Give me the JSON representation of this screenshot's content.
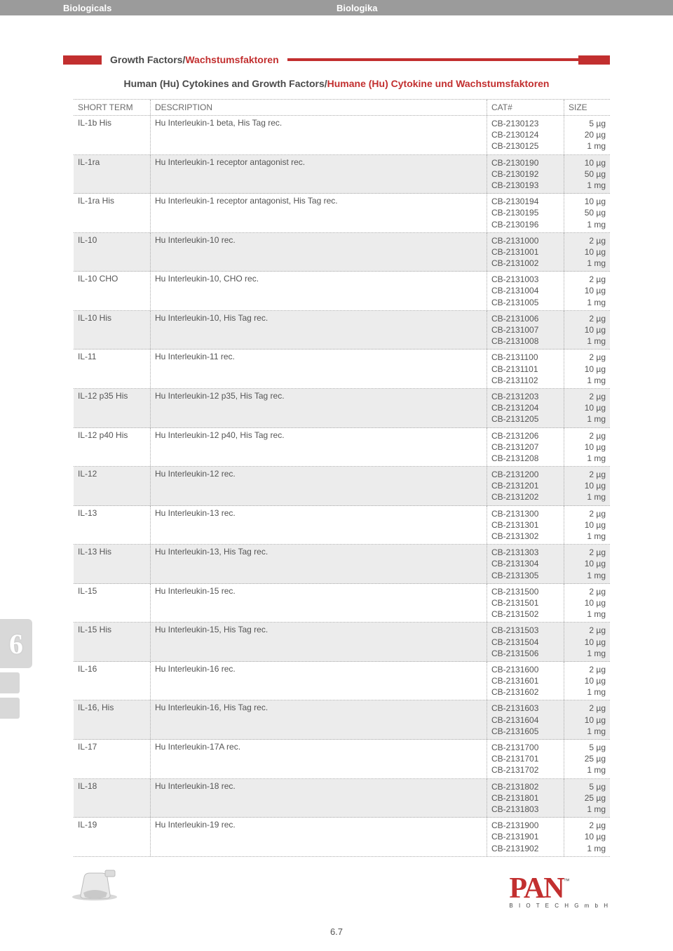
{
  "header": {
    "left": "Biologicals",
    "right": "Biologika"
  },
  "section": {
    "title_en": "Growth Factors",
    "title_de": "Wachstumsfaktoren",
    "sep": "/"
  },
  "subtitle": {
    "en": "Human (Hu) Cytokines and Growth Factors",
    "de": "Humane (Hu) Cytokine und Wachstumsfaktoren",
    "sep": "/"
  },
  "columns": {
    "short": "SHORT TERM",
    "desc": "DESCRIPTION",
    "cat": "CAT#",
    "size": "SIZE"
  },
  "side_tab": "6",
  "page_number": "6.7",
  "logo": {
    "brand": "PAN",
    "tm": "™",
    "sub": "B I O T E C H   G m b H"
  },
  "colors": {
    "header_bg": "#9b9b9b",
    "accent_red": "#c22f2f",
    "row_shade": "#ececec",
    "text_gray": "#555555",
    "border_dotted": "#aaaaaa"
  },
  "rows": [
    {
      "st": "IL-1b His",
      "desc": "Hu Interleukin-1 beta, His Tag rec.",
      "cats": [
        "CB-2130123",
        "CB-2130124",
        "CB-2130125"
      ],
      "sizes": [
        "5 µg",
        "20 µg",
        "1 mg"
      ],
      "shade": false
    },
    {
      "st": "IL-1ra",
      "desc": "Hu Interleukin-1 receptor antagonist rec.",
      "cats": [
        "CB-2130190",
        "CB-2130192",
        "CB-2130193"
      ],
      "sizes": [
        "10 µg",
        "50 µg",
        "1 mg"
      ],
      "shade": true
    },
    {
      "st": "IL-1ra His",
      "desc": "Hu Interleukin-1 receptor antagonist, His Tag rec.",
      "cats": [
        "CB-2130194",
        "CB-2130195",
        "CB-2130196"
      ],
      "sizes": [
        "10 µg",
        "50 µg",
        "1 mg"
      ],
      "shade": false
    },
    {
      "st": "IL-10",
      "desc": "Hu Interleukin-10 rec.",
      "cats": [
        "CB-2131000",
        "CB-2131001",
        "CB-2131002"
      ],
      "sizes": [
        "2 µg",
        "10 µg",
        "1 mg"
      ],
      "shade": true
    },
    {
      "st": "IL-10 CHO",
      "desc": "Hu Interleukin-10, CHO rec.",
      "cats": [
        "CB-2131003",
        "CB-2131004",
        "CB-2131005"
      ],
      "sizes": [
        "2 µg",
        "10 µg",
        "1 mg"
      ],
      "shade": false
    },
    {
      "st": "IL-10 His",
      "desc": "Hu Interleukin-10, His Tag rec.",
      "cats": [
        "CB-2131006",
        "CB-2131007",
        "CB-2131008"
      ],
      "sizes": [
        "2 µg",
        "10 µg",
        "1 mg"
      ],
      "shade": true
    },
    {
      "st": "IL-11",
      "desc": "Hu Interleukin-11 rec.",
      "cats": [
        "CB-2131100",
        "CB-2131101",
        "CB-2131102"
      ],
      "sizes": [
        "2 µg",
        "10 µg",
        "1 mg"
      ],
      "shade": false
    },
    {
      "st": "IL-12 p35 His",
      "desc": "Hu Interleukin-12 p35, His Tag rec.",
      "cats": [
        "CB-2131203",
        "CB-2131204",
        "CB-2131205"
      ],
      "sizes": [
        "2 µg",
        "10 µg",
        "1 mg"
      ],
      "shade": true
    },
    {
      "st": "IL-12 p40 His",
      "desc": "Hu Interleukin-12 p40, His Tag rec.",
      "cats": [
        "CB-2131206",
        "CB-2131207",
        "CB-2131208"
      ],
      "sizes": [
        "2 µg",
        "10 µg",
        "1 mg"
      ],
      "shade": false
    },
    {
      "st": "IL-12",
      "desc": "Hu Interleukin-12 rec.",
      "cats": [
        "CB-2131200",
        "CB-2131201",
        "CB-2131202"
      ],
      "sizes": [
        "2 µg",
        "10 µg",
        "1 mg"
      ],
      "shade": true
    },
    {
      "st": "IL-13",
      "desc": "Hu Interleukin-13 rec.",
      "cats": [
        "CB-2131300",
        "CB-2131301",
        "CB-2131302"
      ],
      "sizes": [
        "2 µg",
        "10 µg",
        "1 mg"
      ],
      "shade": false
    },
    {
      "st": "IL-13 His",
      "desc": "Hu Interleukin-13, His Tag rec.",
      "cats": [
        "CB-2131303",
        "CB-2131304",
        "CB-2131305"
      ],
      "sizes": [
        "2 µg",
        "10 µg",
        "1 mg"
      ],
      "shade": true
    },
    {
      "st": "IL-15",
      "desc": "Hu Interleukin-15 rec.",
      "cats": [
        "CB-2131500",
        "CB-2131501",
        "CB-2131502"
      ],
      "sizes": [
        "2 µg",
        "10 µg",
        "1 mg"
      ],
      "shade": false
    },
    {
      "st": "IL-15 His",
      "desc": "Hu Interleukin-15, His Tag rec.",
      "cats": [
        "CB-2131503",
        "CB-2131504",
        "CB-2131506"
      ],
      "sizes": [
        "2 µg",
        "10 µg",
        "1 mg"
      ],
      "shade": true
    },
    {
      "st": "IL-16",
      "desc": "Hu Interleukin-16 rec.",
      "cats": [
        "CB-2131600",
        "CB-2131601",
        "CB-2131602"
      ],
      "sizes": [
        "2 µg",
        "10 µg",
        "1 mg"
      ],
      "shade": false
    },
    {
      "st": "IL-16, His",
      "desc": "Hu Interleukin-16, His Tag rec.",
      "cats": [
        "CB-2131603",
        "CB-2131604",
        "CB-2131605"
      ],
      "sizes": [
        "2 µg",
        "10 µg",
        "1 mg"
      ],
      "shade": true
    },
    {
      "st": "IL-17",
      "desc": "Hu Interleukin-17A rec.",
      "cats": [
        "CB-2131700",
        "CB-2131701",
        "CB-2131702"
      ],
      "sizes": [
        "5 µg",
        "25 µg",
        "1 mg"
      ],
      "shade": false
    },
    {
      "st": "IL-18",
      "desc": "Hu Interleukin-18 rec.",
      "cats": [
        "CB-2131802",
        "CB-2131801",
        "CB-2131803"
      ],
      "sizes": [
        "5 µg",
        "25 µg",
        "1 mg"
      ],
      "shade": true
    },
    {
      "st": "IL-19",
      "desc": "Hu Interleukin-19 rec.",
      "cats": [
        "CB-2131900",
        "CB-2131901",
        "CB-2131902"
      ],
      "sizes": [
        "2 µg",
        "10 µg",
        "1 mg"
      ],
      "shade": false
    }
  ]
}
